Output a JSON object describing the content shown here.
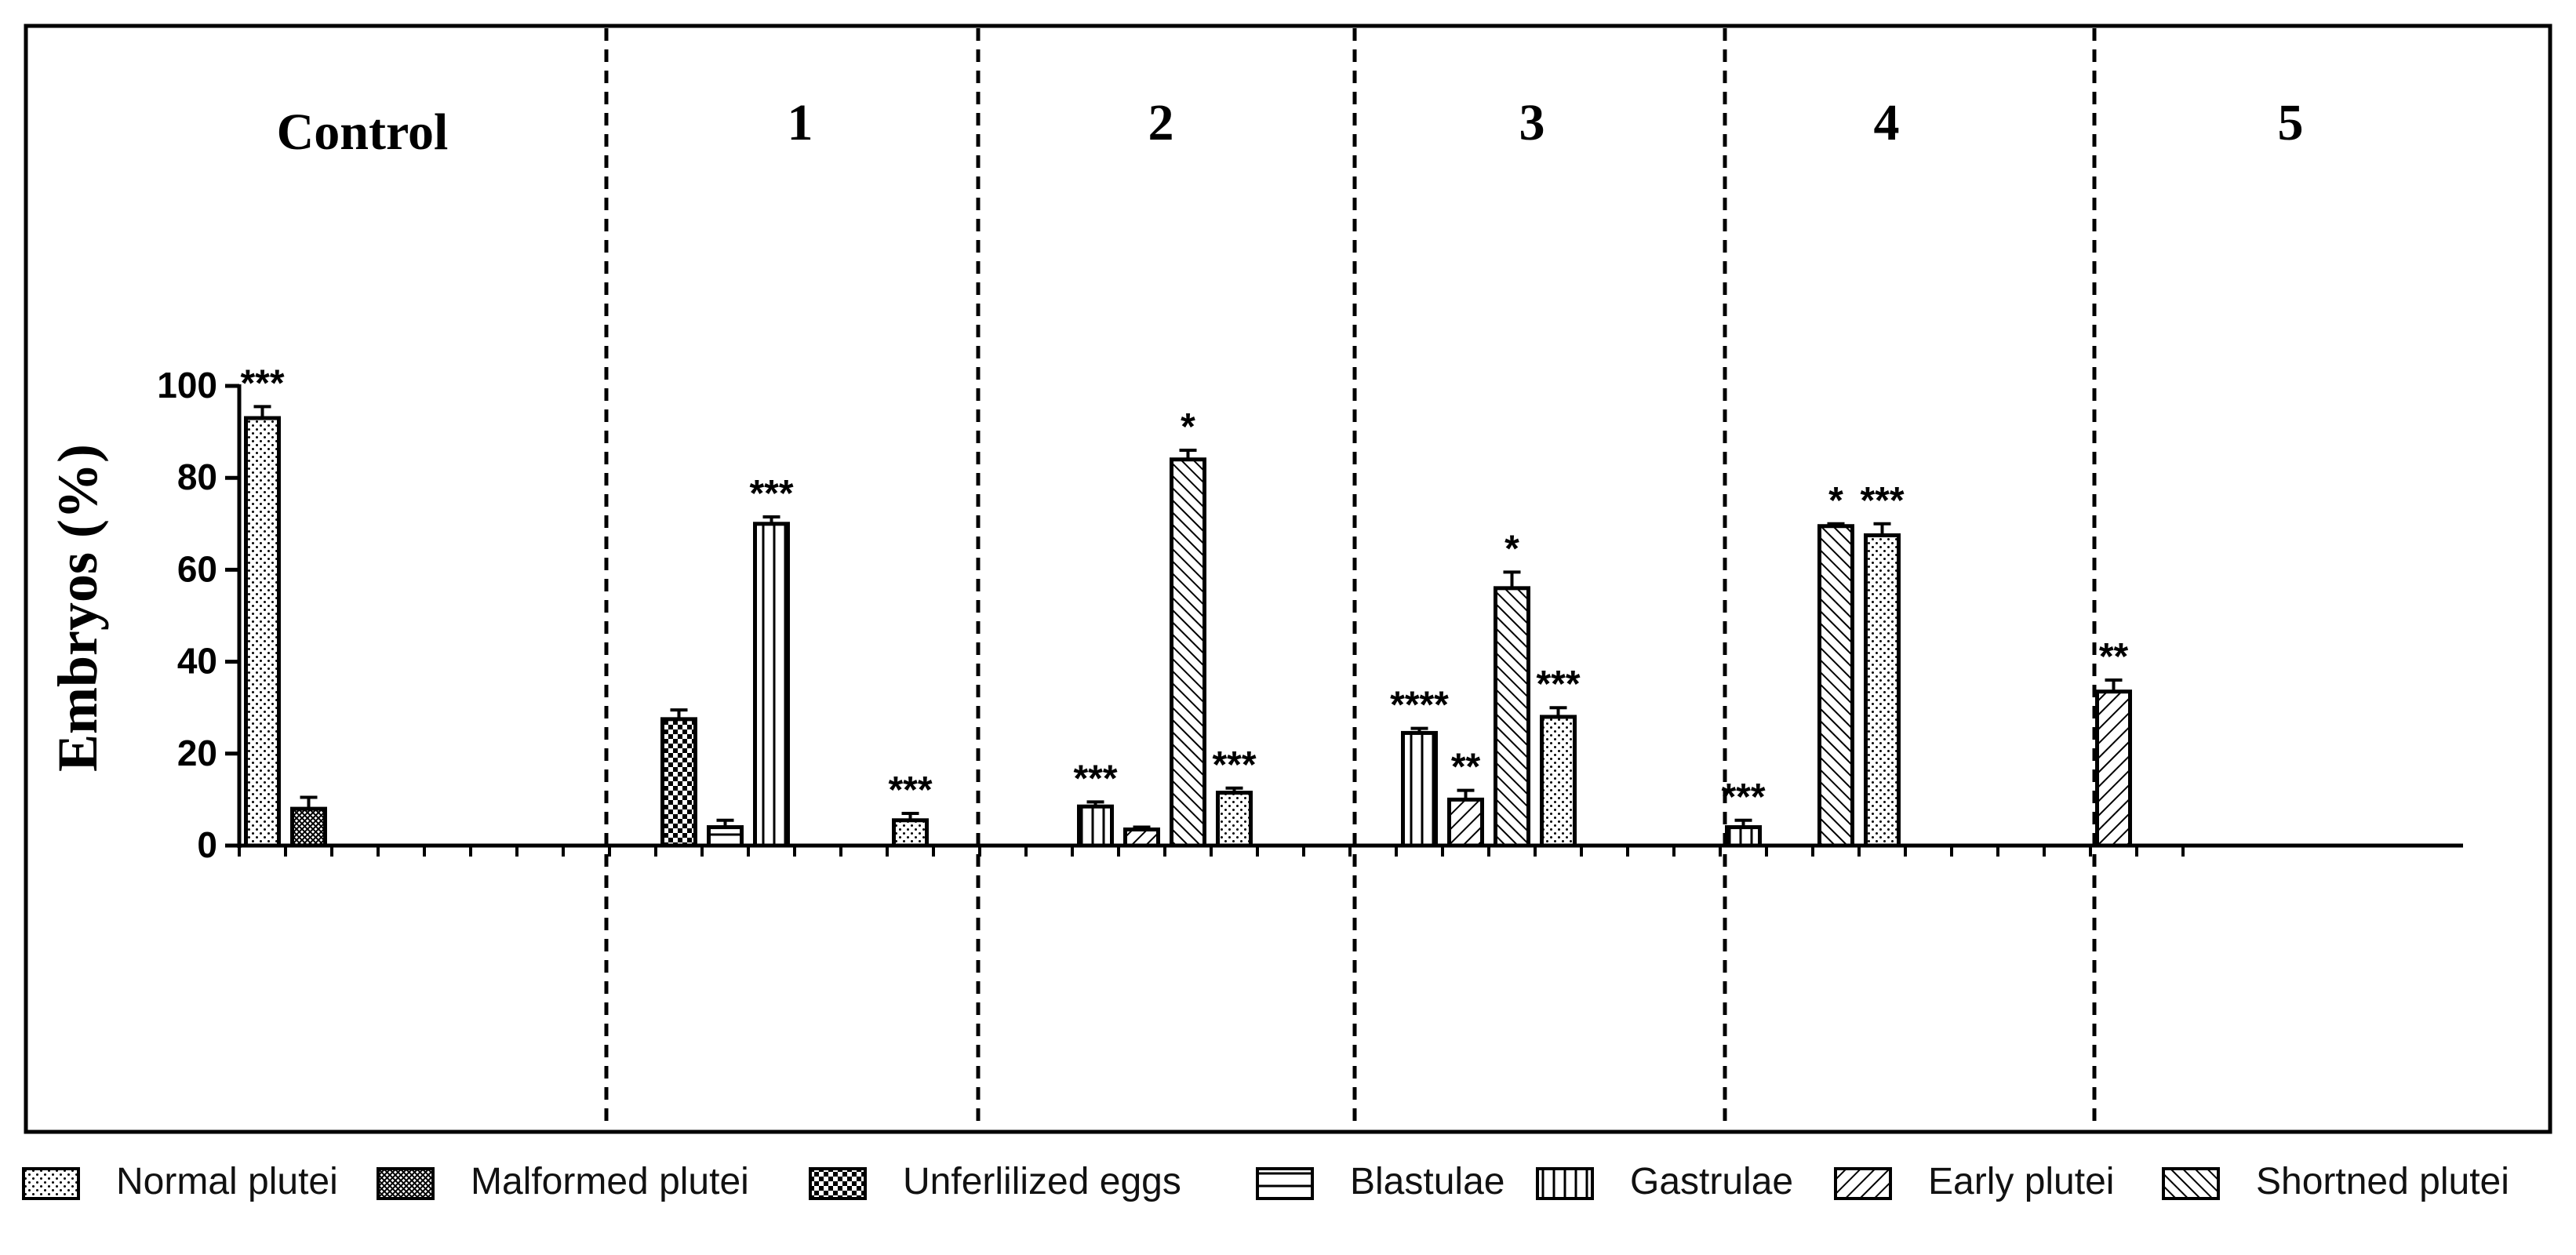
{
  "chart_data": {
    "type": "bar",
    "ylabel": "Embryos (%)",
    "ylim": [
      0,
      100
    ],
    "yticks": [
      0,
      20,
      40,
      60,
      80,
      100
    ],
    "categories": [
      "Normal plutei",
      "Malformed plutei",
      "Unferlilized eggs",
      "Blastulae",
      "Gastrulae",
      "Early plutei",
      "Shortned plutei"
    ],
    "patterns": [
      "dots",
      "crosshatch",
      "checker",
      "horizontal",
      "vertical",
      "diag-up",
      "diag-down"
    ],
    "panels": [
      {
        "label": "Control",
        "bars": [
          {
            "category": "Normal plutei",
            "value": 93,
            "error": 2.5,
            "annotation": "***"
          },
          {
            "category": "Malformed plutei",
            "value": 8,
            "error": 2.5,
            "annotation": ""
          }
        ]
      },
      {
        "label": "1",
        "bars": [
          {
            "category": "Unferlilized eggs",
            "value": 27.5,
            "error": 2,
            "annotation": ""
          },
          {
            "category": "Blastulae",
            "value": 4,
            "error": 1.5,
            "annotation": ""
          },
          {
            "category": "Gastrulae",
            "value": 70,
            "error": 1.5,
            "annotation": "***"
          }
        ]
      },
      {
        "label": "2",
        "bars": [
          {
            "category": "Normal plutei",
            "value": 5.5,
            "error": 1.5,
            "annotation": "***"
          },
          {
            "category": "Gastrulae",
            "value": 8.5,
            "error": 1,
            "annotation": "***"
          },
          {
            "category": "Early plutei",
            "value": 3.5,
            "error": 0.5,
            "annotation": ""
          },
          {
            "category": "Shortned plutei",
            "value": 84,
            "error": 2,
            "annotation": "*"
          }
        ]
      },
      {
        "label": "3",
        "bars": [
          {
            "category": "Normal plutei",
            "value": 11.5,
            "error": 1,
            "annotation": "***"
          },
          {
            "category": "Gastrulae",
            "value": 24.5,
            "error": 1,
            "annotation": "****"
          },
          {
            "category": "Early plutei",
            "value": 10,
            "error": 2,
            "annotation": "**"
          },
          {
            "category": "Shortned plutei",
            "value": 56,
            "error": 3.5,
            "annotation": "*"
          }
        ]
      },
      {
        "label": "4",
        "bars": [
          {
            "category": "Normal plutei",
            "value": 28,
            "error": 2,
            "annotation": "***"
          },
          {
            "category": "Gastrulae",
            "value": 4,
            "error": 1.5,
            "annotation": "***"
          },
          {
            "category": "Shortned plutei",
            "value": 69.5,
            "error": 0.5,
            "annotation": "*"
          }
        ]
      },
      {
        "label": "5",
        "bars": [
          {
            "category": "Normal plutei",
            "value": 67.5,
            "error": 2.5,
            "annotation": "***"
          },
          {
            "category": "Early plutei",
            "value": 33.5,
            "error": 2.5,
            "annotation": "**"
          }
        ]
      }
    ],
    "legend_position": "bottom",
    "grid": false
  }
}
